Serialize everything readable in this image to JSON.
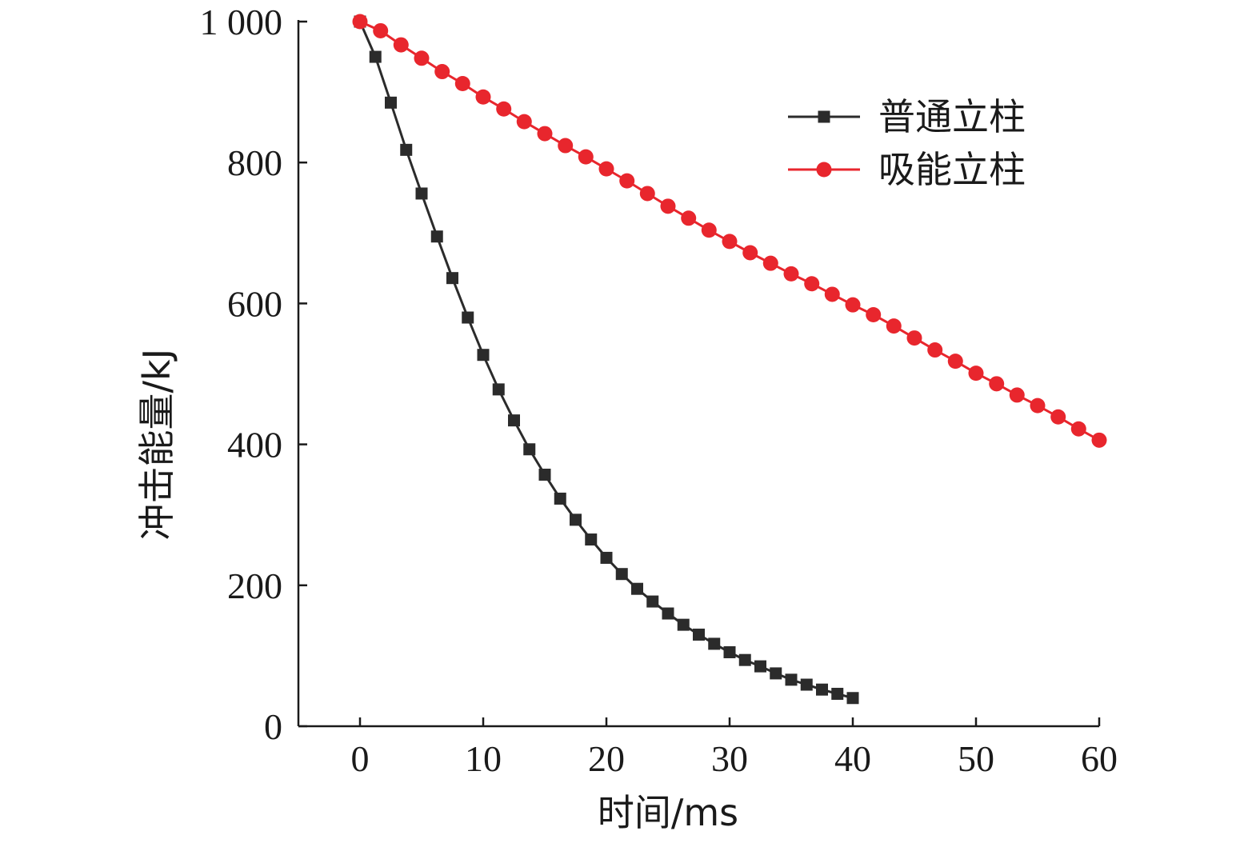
{
  "chart_data": {
    "type": "line",
    "xlabel": "时间/ms",
    "ylabel": "冲击能量/kJ",
    "xlim": [
      -5,
      60
    ],
    "ylim": [
      0,
      1000
    ],
    "xticks": [
      0,
      10,
      20,
      30,
      40,
      50,
      60
    ],
    "yticks": [
      0,
      200,
      400,
      600,
      800,
      1000
    ],
    "ytick_labels": [
      "0",
      "200",
      "400",
      "600",
      "800",
      "1 000"
    ],
    "grid": false,
    "legend_position": "top-right",
    "series": [
      {
        "name": "普通立柱",
        "color": "#2b2b2b",
        "marker": "square",
        "points": [
          [
            0,
            1000
          ],
          [
            1.25,
            950
          ],
          [
            2.5,
            885
          ],
          [
            3.75,
            818
          ],
          [
            5,
            756
          ],
          [
            6.25,
            695
          ],
          [
            7.5,
            636
          ],
          [
            8.75,
            580
          ],
          [
            10,
            527
          ],
          [
            11.25,
            478
          ],
          [
            12.5,
            434
          ],
          [
            13.75,
            393
          ],
          [
            15,
            357
          ],
          [
            16.25,
            323
          ],
          [
            17.5,
            293
          ],
          [
            18.75,
            265
          ],
          [
            20,
            239
          ],
          [
            21.25,
            216
          ],
          [
            22.5,
            195
          ],
          [
            23.75,
            177
          ],
          [
            25,
            160
          ],
          [
            26.25,
            144
          ],
          [
            27.5,
            130
          ],
          [
            28.75,
            117
          ],
          [
            30,
            105
          ],
          [
            31.25,
            94
          ],
          [
            32.5,
            85
          ],
          [
            33.75,
            75
          ],
          [
            35,
            66
          ],
          [
            36.25,
            59
          ],
          [
            37.5,
            52
          ],
          [
            38.75,
            46
          ],
          [
            40,
            40
          ]
        ]
      },
      {
        "name": "吸能立柱",
        "color": "#e8262d",
        "marker": "circle",
        "points": [
          [
            0,
            1000
          ],
          [
            1.67,
            987
          ],
          [
            3.33,
            967
          ],
          [
            5,
            948
          ],
          [
            6.67,
            929
          ],
          [
            8.33,
            912
          ],
          [
            10,
            893
          ],
          [
            11.67,
            876
          ],
          [
            13.33,
            858
          ],
          [
            15,
            841
          ],
          [
            16.67,
            824
          ],
          [
            18.33,
            808
          ],
          [
            20,
            791
          ],
          [
            21.67,
            774
          ],
          [
            23.33,
            756
          ],
          [
            25,
            738
          ],
          [
            26.67,
            721
          ],
          [
            28.33,
            704
          ],
          [
            30,
            688
          ],
          [
            31.67,
            672
          ],
          [
            33.33,
            657
          ],
          [
            35,
            642
          ],
          [
            36.67,
            628
          ],
          [
            38.33,
            613
          ],
          [
            40,
            598
          ],
          [
            41.67,
            584
          ],
          [
            43.33,
            568
          ],
          [
            45,
            551
          ],
          [
            46.67,
            534
          ],
          [
            48.33,
            518
          ],
          [
            50,
            501
          ],
          [
            51.67,
            486
          ],
          [
            53.33,
            470
          ],
          [
            55,
            455
          ],
          [
            56.67,
            439
          ],
          [
            58.33,
            422
          ],
          [
            60,
            406
          ]
        ]
      }
    ]
  }
}
